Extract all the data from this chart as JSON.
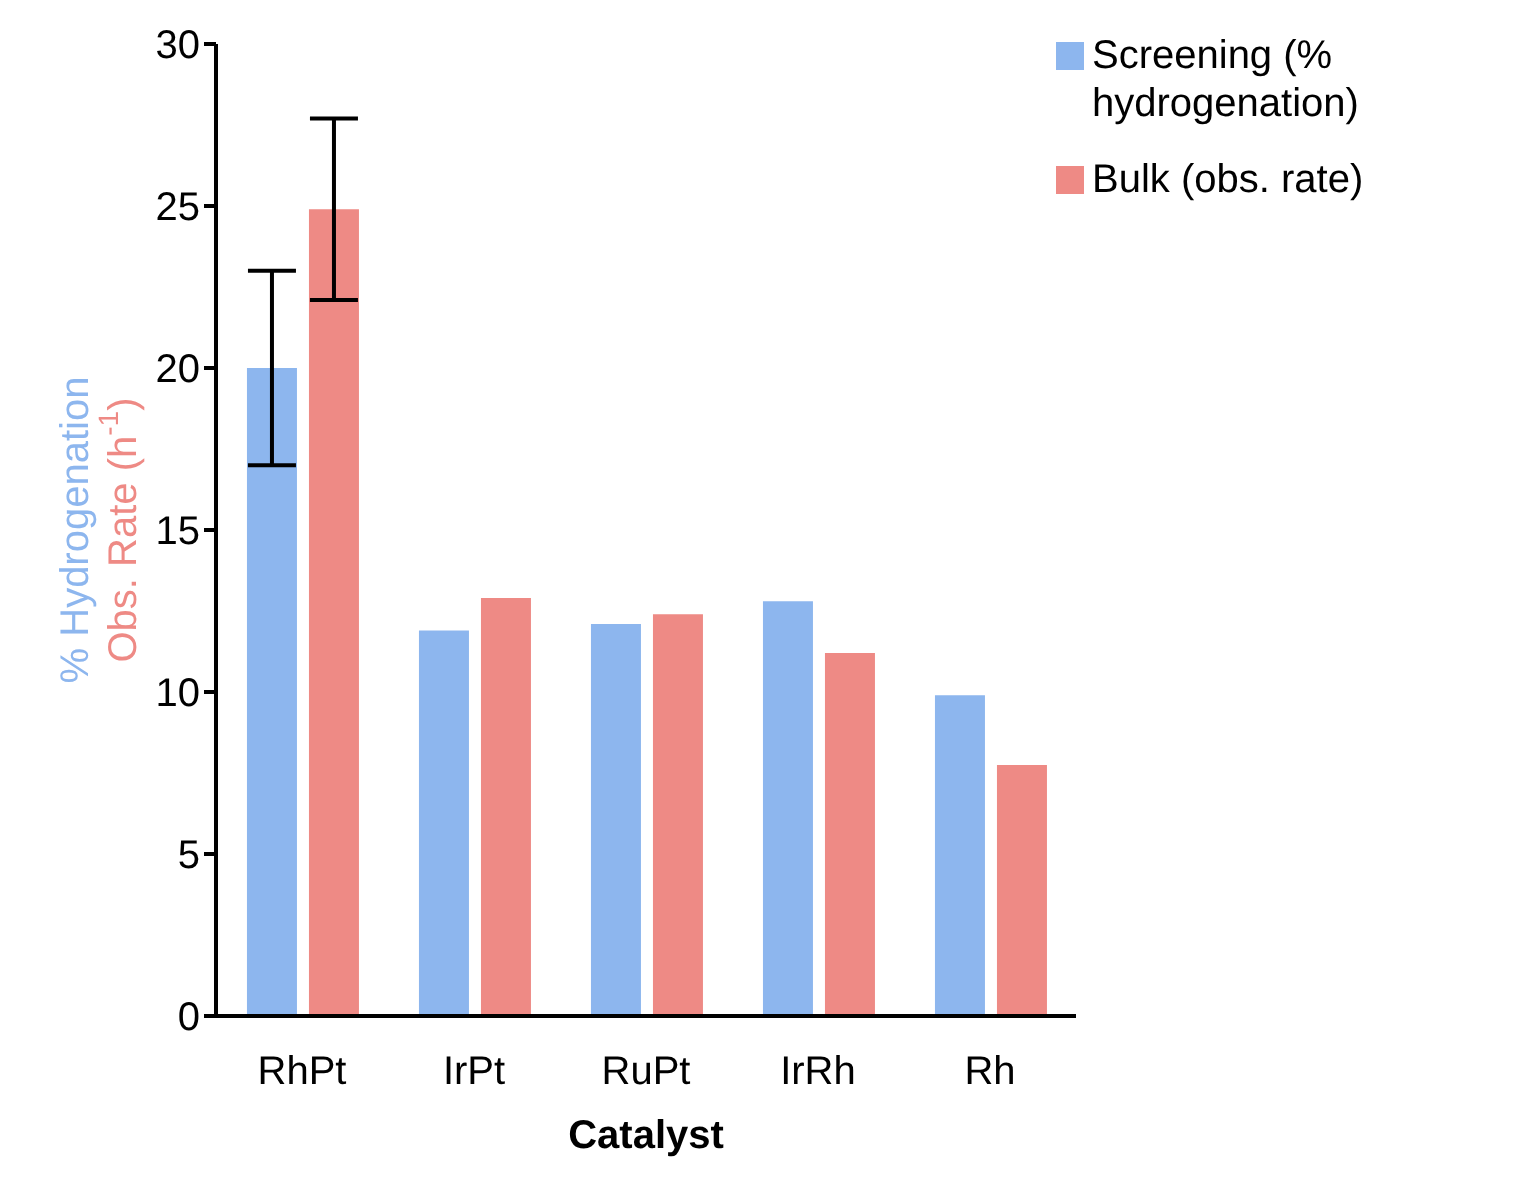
{
  "chart_data": {
    "type": "bar",
    "xlabel": "Catalyst",
    "ylabel": [
      "% Hydrogenation",
      "Obs. Rate (h$^{-1}$)"
    ],
    "categories": [
      "RhPt",
      "IrPt",
      "RuPt",
      "IrRh",
      "Rh"
    ],
    "series": [
      {
        "name": "Screening (% hydrogenation)",
        "color": "#8db6ee",
        "values": [
          20,
          11.9,
          12.1,
          12.8,
          9.9
        ],
        "errors": [
          [
            17,
            23
          ],
          null,
          null,
          null,
          null
        ]
      },
      {
        "name": "Bulk (obs. rate)",
        "color": "#ee8a85",
        "values": [
          24.9,
          12.9,
          12.4,
          11.2,
          7.75
        ],
        "errors": [
          [
            22.1,
            27.7
          ],
          null,
          null,
          null,
          null
        ]
      }
    ],
    "ylim": [
      0,
      30
    ],
    "yticks": [
      0,
      5,
      10,
      15,
      20,
      25,
      30
    ],
    "legend": "top right"
  }
}
